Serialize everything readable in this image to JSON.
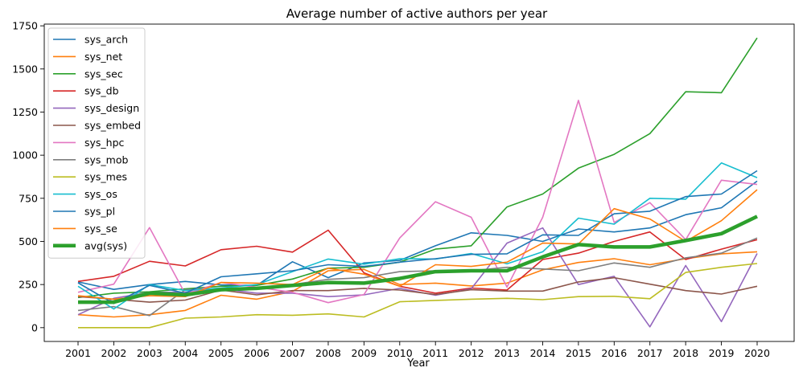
{
  "chart_data": {
    "type": "line",
    "title": "Average number of active authors per year",
    "xlabel": "Year",
    "ylabel": "",
    "ylim": [
      -80,
      1760
    ],
    "yticks": [
      0,
      250,
      500,
      750,
      1000,
      1250,
      1500,
      1750
    ],
    "categories": [
      "2001",
      "2002",
      "2003",
      "2004",
      "2005",
      "2006",
      "2007",
      "2008",
      "2009",
      "2010",
      "2011",
      "2012",
      "2013",
      "2014",
      "2015",
      "2016",
      "2017",
      "2018",
      "2019",
      "2020"
    ],
    "legend_position": "top-left",
    "grid": false,
    "series": [
      {
        "name": "sys_arch",
        "color": "#1f77b4",
        "width": 1.6,
        "values": [
          265,
          222,
          250,
          268,
          248,
          245,
          382,
          290,
          375,
          390,
          475,
          550,
          535,
          500,
          572,
          555,
          578,
          655,
          695,
          850
        ]
      },
      {
        "name": "sys_net",
        "color": "#ff7f0e",
        "width": 1.6,
        "values": [
          75,
          62,
          75,
          100,
          188,
          165,
          210,
          330,
          338,
          250,
          258,
          242,
          258,
          335,
          378,
          400,
          365,
          400,
          428,
          440
        ]
      },
      {
        "name": "sys_sec",
        "color": "#2ca02c",
        "width": 1.6,
        "values": [
          175,
          200,
          208,
          225,
          240,
          245,
          282,
          345,
          350,
          380,
          455,
          475,
          700,
          775,
          925,
          1005,
          1125,
          1368,
          1362,
          1680
        ]
      },
      {
        "name": "sys_db",
        "color": "#d62728",
        "width": 1.6,
        "values": [
          268,
          298,
          385,
          358,
          452,
          472,
          438,
          565,
          318,
          240,
          200,
          230,
          218,
          395,
          432,
          500,
          555,
          395,
          455,
          510
        ]
      },
      {
        "name": "sys_design",
        "color": "#9467bd",
        "width": 1.6,
        "values": [
          75,
          170,
          205,
          205,
          225,
          200,
          200,
          180,
          190,
          228,
          188,
          225,
          490,
          578,
          250,
          298,
          5,
          360,
          35,
          430
        ]
      },
      {
        "name": "sys_embed",
        "color": "#8c564b",
        "width": 1.6,
        "values": [
          180,
          165,
          148,
          160,
          218,
          190,
          215,
          215,
          228,
          218,
          192,
          220,
          212,
          212,
          265,
          290,
          252,
          215,
          195,
          240
        ]
      },
      {
        "name": "sys_hpc",
        "color": "#e377c2",
        "width": 1.6,
        "values": [
          205,
          252,
          580,
          195,
          262,
          235,
          205,
          145,
          192,
          520,
          730,
          640,
          235,
          640,
          1318,
          610,
          725,
          510,
          855,
          830
        ]
      },
      {
        "name": "sys_mob",
        "color": "#7f7f7f",
        "width": 1.6,
        "values": [
          100,
          122,
          70,
          220,
          228,
          228,
          250,
          280,
          290,
          325,
          330,
          330,
          350,
          340,
          330,
          375,
          350,
          405,
          432,
          520
        ]
      },
      {
        "name": "sys_mes",
        "color": "#bcbd22",
        "width": 1.6,
        "values": [
          0,
          0,
          0,
          55,
          62,
          75,
          72,
          80,
          62,
          150,
          158,
          165,
          170,
          162,
          180,
          182,
          168,
          320,
          350,
          372
        ]
      },
      {
        "name": "sys_os",
        "color": "#17becf",
        "width": 1.6,
        "values": [
          240,
          108,
          250,
          215,
          230,
          250,
          325,
          398,
          368,
          400,
          398,
          430,
          370,
          440,
          635,
          600,
          750,
          745,
          955,
          870
        ]
      },
      {
        "name": "sys_pl",
        "color": "#1f77b4",
        "width": 1.6,
        "values": [
          260,
          140,
          245,
          200,
          295,
          312,
          330,
          365,
          355,
          380,
          400,
          425,
          428,
          538,
          535,
          660,
          675,
          760,
          775,
          910
        ]
      },
      {
        "name": "sys_se",
        "color": "#ff7f0e",
        "width": 1.6,
        "values": [
          185,
          165,
          185,
          180,
          262,
          258,
          250,
          345,
          310,
          240,
          365,
          355,
          380,
          490,
          485,
          690,
          630,
          500,
          620,
          800
        ]
      },
      {
        "name": "avg(sys)",
        "color": "#2ca02c",
        "width": 4.5,
        "values": [
          148,
          148,
          200,
          190,
          220,
          228,
          245,
          262,
          258,
          285,
          325,
          330,
          330,
          410,
          482,
          468,
          468,
          505,
          545,
          645
        ]
      }
    ]
  }
}
